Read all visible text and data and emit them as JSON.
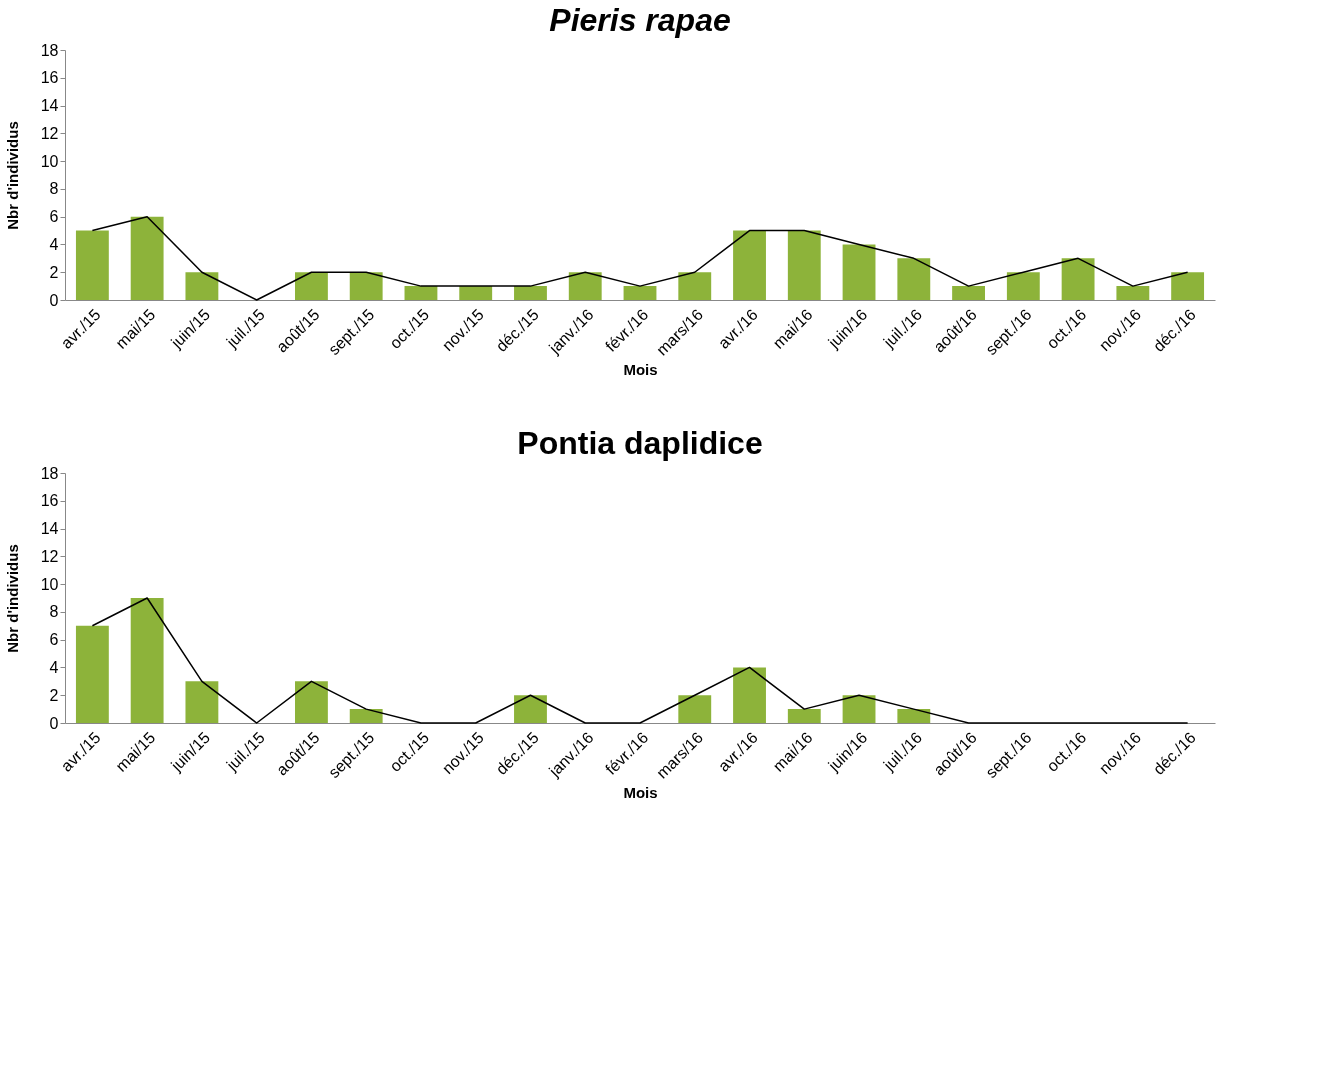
{
  "chart_data": [
    {
      "type": "bar",
      "title": "Pieris rapae",
      "xlabel": "Mois",
      "ylabel": "Nbr d'individus",
      "categories": [
        "avr./15",
        "mai/15",
        "juin/15",
        "juil./15",
        "août/15",
        "sept./15",
        "oct./15",
        "nov./15",
        "déc./15",
        "janv./16",
        "févr./16",
        "mars/16",
        "avr./16",
        "mai/16",
        "juin/16",
        "juil./16",
        "août/16",
        "sept./16",
        "oct./16",
        "nov./16",
        "déc./16"
      ],
      "series": [
        {
          "color": "#8db33a",
          "values": [
            5,
            6,
            2,
            0,
            2,
            2,
            1,
            1,
            1,
            2,
            1,
            2,
            5,
            5,
            4,
            3,
            1,
            2,
            3,
            1,
            2
          ]
        },
        {
          "type": "line",
          "color": "#000000",
          "values": [
            5,
            6,
            2,
            0,
            2,
            2,
            1,
            1,
            1,
            2,
            1,
            2,
            5,
            5,
            4,
            3,
            1,
            2,
            3,
            1,
            2
          ]
        }
      ],
      "ylim": [
        0,
        18
      ],
      "yticks": [
        0,
        2,
        4,
        6,
        8,
        10,
        12,
        14,
        16,
        18
      ],
      "grid": false,
      "marker": "none"
    },
    {
      "type": "bar",
      "title": "Pontia  daplidice",
      "xlabel": "Mois",
      "ylabel": "Nbr d'individus",
      "categories": [
        "avr./15",
        "mai/15",
        "juin/15",
        "juil./15",
        "août/15",
        "sept./15",
        "oct./15",
        "nov./15",
        "déc./15",
        "janv./16",
        "févr./16",
        "mars/16",
        "avr./16",
        "mai/16",
        "juin/16",
        "juil./16",
        "août/16",
        "sept./16",
        "oct./16",
        "nov./16",
        "déc./16"
      ],
      "series": [
        {
          "color": "#8db33a",
          "values": [
            7,
            9,
            3,
            0,
            3,
            1,
            0,
            0,
            2,
            0,
            0,
            2,
            4,
            1,
            2,
            1,
            0,
            0,
            0,
            0,
            0
          ]
        },
        {
          "type": "line",
          "color": "#000000",
          "values": [
            7,
            9,
            3,
            0,
            3,
            1,
            0,
            0,
            2,
            0,
            0,
            2,
            4,
            1,
            2,
            1,
            0,
            0,
            0,
            0,
            0
          ]
        }
      ],
      "ylim": [
        0,
        18
      ],
      "yticks": [
        0,
        2,
        4,
        6,
        8,
        10,
        12,
        14,
        16,
        18
      ],
      "grid": false,
      "marker": "none"
    }
  ]
}
